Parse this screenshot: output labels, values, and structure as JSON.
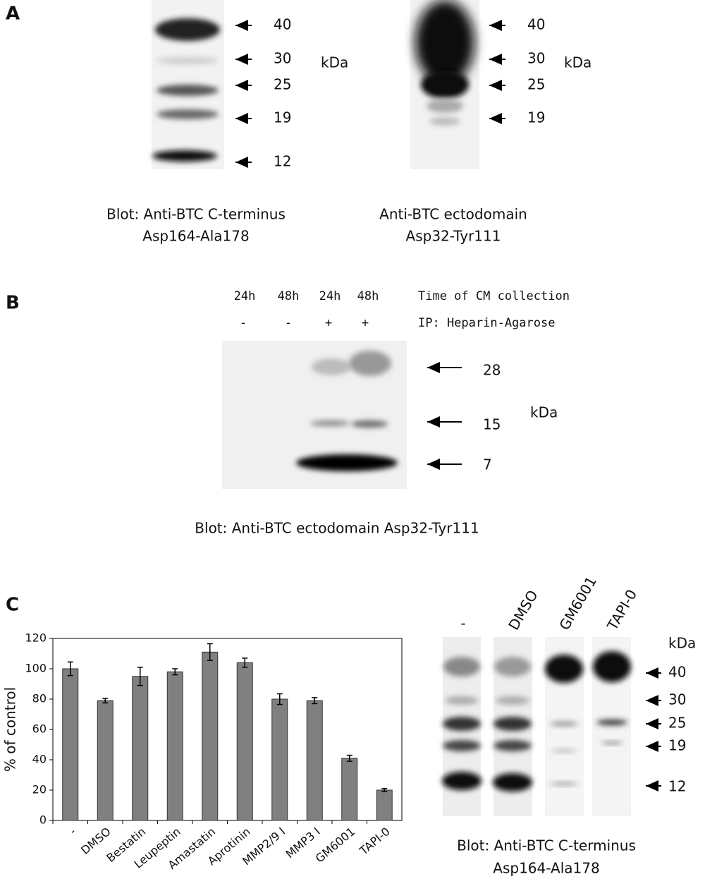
{
  "panel_a": {
    "label": "A",
    "blot_1": {
      "markers": [
        "40",
        "30",
        "25",
        "19",
        "12"
      ],
      "unit": "kDa",
      "caption": [
        "Blot: Anti-BTC C-terminus",
        "Asp164-Ala178"
      ]
    },
    "blot_2": {
      "markers": [
        "40",
        "30",
        "25",
        "19"
      ],
      "unit": "kDa",
      "caption": [
        "Anti-BTC ectodomain",
        "Asp32-Tyr111"
      ]
    }
  },
  "panel_b": {
    "label": "B",
    "time_labels": [
      "24h",
      "48h",
      "24h",
      "48h"
    ],
    "time_caption": "Time of CM collection",
    "ip_labels": [
      "-",
      "-",
      "+",
      "+"
    ],
    "ip_caption": "IP: Heparin-Agarose",
    "markers": [
      "28",
      "15",
      "7"
    ],
    "unit": "kDa",
    "caption": "Blot: Anti-BTC ectodomain Asp32-Tyr111"
  },
  "panel_c": {
    "label": "C",
    "lanes": [
      "-",
      "DMSO",
      "GM6001",
      "TAPI-0"
    ],
    "unit": "kDa",
    "markers": [
      "40",
      "30",
      "25",
      "19",
      "12"
    ],
    "caption": [
      "Blot: Anti-BTC C-terminus",
      "Asp164-Ala178"
    ]
  },
  "chart_data": {
    "type": "bar",
    "y_label": "% of control",
    "categories": [
      "-",
      "DMSO",
      "Bestatin",
      "Leupeptin",
      "Amastatin",
      "Aprotinin",
      "MMP2/9 I",
      "MMP3 I",
      "GM6001",
      "TAPI-0"
    ],
    "values": [
      100,
      79,
      95,
      98,
      111,
      104,
      80,
      79,
      41,
      20
    ],
    "errors": [
      4.5,
      1.5,
      6,
      2,
      5.5,
      3,
      3.5,
      2,
      2,
      1
    ],
    "color": "#808080",
    "ylim": [
      0,
      120
    ],
    "yticks": [
      0,
      20,
      40,
      60,
      80,
      100,
      120
    ]
  }
}
